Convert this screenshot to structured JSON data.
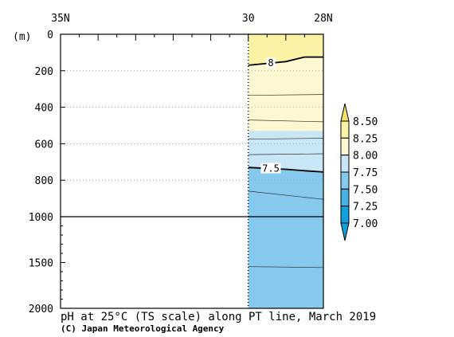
{
  "chart_data": {
    "type": "contour-section",
    "title": "pH at 25°C (TS scale) along PT line, March 2019",
    "credit": "(C) Japan Meteorological Agency",
    "yunit": "(m)",
    "x_tick_labels": [
      "35N",
      "30",
      "28N"
    ],
    "x_ticks_lat": [
      35,
      34.5,
      34,
      33.5,
      33,
      32.5,
      32,
      31.5,
      31,
      30.5,
      30,
      29.5,
      29,
      28.5,
      28
    ],
    "xlim": [
      35,
      28
    ],
    "y_ticks_upper": [
      0,
      200,
      400,
      600,
      800,
      1000
    ],
    "y_ticks_lower": [
      1500,
      2000
    ],
    "data_xlim": [
      30,
      28
    ],
    "colorbar": {
      "levels": [
        "8.50",
        "8.25",
        "8.00",
        "7.75",
        "7.50",
        "7.25",
        "7.00"
      ],
      "colors": [
        "#f2e26a",
        "#faf2a4",
        "#fdf8d2",
        "#c8e6f6",
        "#86c9ed",
        "#48afe3",
        "#10a0dc"
      ]
    },
    "bands": [
      {
        "min": 8.0,
        "max": 8.25,
        "color": "#faf2a4",
        "top": [
          [
            30,
            0
          ],
          [
            28,
            0
          ]
        ],
        "bottom": [
          [
            30,
            170
          ],
          [
            29.5,
            160
          ],
          [
            29,
            150
          ],
          [
            28.5,
            125
          ],
          [
            28,
            125
          ]
        ]
      },
      {
        "min": 7.75,
        "max": 8.0,
        "color": "#fdf8d2",
        "top": [
          [
            30,
            170
          ],
          [
            29.5,
            160
          ],
          [
            29,
            150
          ],
          [
            28.5,
            125
          ],
          [
            28,
            125
          ]
        ],
        "bottom": [
          [
            30,
            530
          ],
          [
            28,
            530
          ]
        ]
      },
      {
        "min": 7.5,
        "max": 7.75,
        "color": "#c8e6f6",
        "top": [
          [
            30,
            530
          ],
          [
            28,
            530
          ]
        ],
        "bottom": [
          [
            30,
            730
          ],
          [
            29,
            740
          ],
          [
            28,
            755
          ]
        ]
      },
      {
        "min": 7.25,
        "max": 7.5,
        "color": "#86c9ed",
        "top": [
          [
            30,
            730
          ],
          [
            29,
            740
          ],
          [
            28,
            755
          ]
        ],
        "bottom": [
          [
            30,
            2000
          ],
          [
            28,
            2000
          ]
        ]
      }
    ],
    "contours_major": [
      {
        "label": "8",
        "label_lat": 29.4,
        "points": [
          [
            30,
            170
          ],
          [
            29.5,
            160
          ],
          [
            29,
            150
          ],
          [
            28.5,
            125
          ],
          [
            28,
            125
          ]
        ]
      },
      {
        "label": "7.5",
        "label_lat": 29.4,
        "points": [
          [
            30,
            730
          ],
          [
            29.5,
            735
          ],
          [
            29,
            740
          ],
          [
            28.5,
            748
          ],
          [
            28,
            755
          ]
        ]
      }
    ],
    "contours_minor": [
      [
        [
          30,
          335
        ],
        [
          28,
          330
        ]
      ],
      [
        [
          30,
          470
        ],
        [
          28,
          480
        ]
      ],
      [
        [
          30,
          575
        ],
        [
          28,
          570
        ]
      ],
      [
        [
          30,
          660
        ],
        [
          28,
          655
        ]
      ],
      [
        [
          30,
          860
        ],
        [
          28,
          905
        ]
      ],
      [
        [
          30,
          1545
        ],
        [
          28,
          1555
        ]
      ]
    ]
  }
}
